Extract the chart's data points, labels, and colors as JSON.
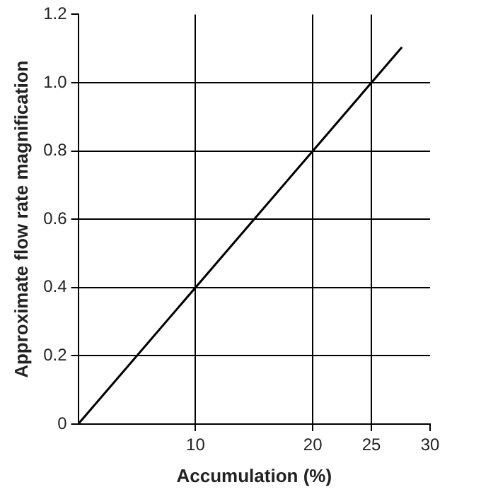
{
  "chart_data": {
    "type": "line",
    "xlabel": "Accumulation (%)",
    "ylabel": "Approximate flow rate magnification",
    "x": [
      0,
      27.6
    ],
    "series": [
      {
        "color": "#000000",
        "values": [
          0,
          1.104
        ]
      }
    ],
    "xlim": [
      0,
      30
    ],
    "xticks": [
      10,
      20,
      25,
      30
    ],
    "ylim": [
      0,
      1.2
    ],
    "yticks": [
      0,
      0.2,
      0.4,
      0.6,
      0.8,
      {
        "value": 1,
        "label": "1.0"
      },
      1.2
    ],
    "grid": true,
    "legend": false,
    "marker": "none",
    "line_style": "solid"
  }
}
